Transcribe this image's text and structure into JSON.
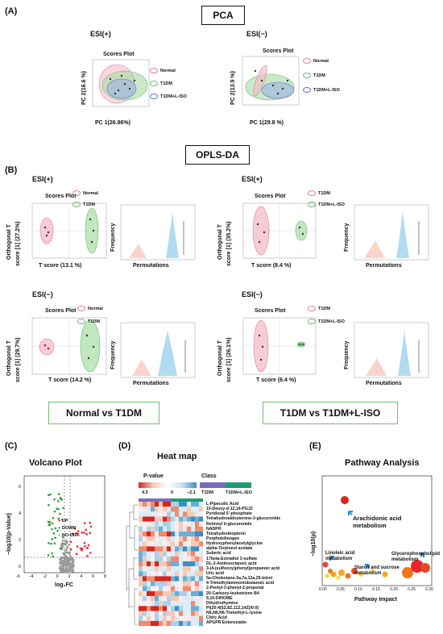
{
  "panels": {
    "a": "(A)",
    "b": "(B)",
    "c": "(C)",
    "d": "(D)",
    "e": "(E)"
  },
  "pca": {
    "title": "PCA",
    "esi_pos": "ESI(+)",
    "esi_neg": "ESI(−)",
    "plot_title": "Scores Plot",
    "left": {
      "xlabel": "PC 1(26.86%)",
      "ylabel": "PC 2(16.6 %)"
    },
    "right": {
      "xlabel": "PC 1(29.8 %)",
      "ylabel": "PC 2(13.9 %)"
    },
    "legend": [
      "Normal",
      "T1DM",
      "T1DM+L-ISO"
    ]
  },
  "oplsda": {
    "title": "OPLS-DA",
    "esi_pos": "ESI(+)",
    "esi_neg": "ESI(−)",
    "scores_title": "Scores Plot",
    "frequency_label": "Frequency",
    "permutations_label": "Permutations",
    "tl": {
      "xlabel": "T score (13.1 %)",
      "ylabel1": "Orthogonal T",
      "ylabel2": "score [1] (27.2%)",
      "legend": [
        "Normal",
        "T1DM"
      ]
    },
    "tr": {
      "xlabel": "T score (8.4 %)",
      "ylabel1": "Orthogonal T",
      "ylabel2": "score [1] (35.2%)",
      "legend": [
        "T1DM",
        "T1DM+L-ISO"
      ]
    },
    "bl": {
      "xlabel": "T score (14.2 %)",
      "ylabel1": "Orthogonal T",
      "ylabel2": "score [1] (29.7%)",
      "legend": [
        "Normal",
        "T1DM"
      ]
    },
    "br": {
      "xlabel": "T score (6.4 %)",
      "ylabel1": "Orthogonal T",
      "ylabel2": "score [1] (26.1%)",
      "legend": [
        "T1DM",
        "T1DM+L-ISO"
      ]
    },
    "comparison_left": "Normal vs T1DM",
    "comparison_right": "T1DM vs T1DM+L-ISO"
  },
  "volcano": {
    "title": "Volcano Plot",
    "xlabel": "log₂FC",
    "ylabel": "−log10(p-Value)",
    "legend": [
      "UP",
      "DOWN",
      "NO-DIFF"
    ],
    "colors": {
      "up": "#e8262b",
      "down": "#2e9e3a",
      "nodiff": "#9a9a9a"
    },
    "xticks": [
      "-6",
      "-4",
      "-2",
      "0",
      "2",
      "4",
      "6",
      "8"
    ],
    "yticks": [
      "0",
      "2",
      "4",
      "6"
    ]
  },
  "heatmap": {
    "title": "Heat map",
    "pvalue_label": "P-value",
    "class_label": "Class",
    "scale_ticks": [
      "4.5",
      "0",
      "−2.1"
    ],
    "class_legend": [
      "T1DM",
      "T1DM+L-ISO"
    ],
    "metabolites": [
      "L-Pipecolic Acid",
      "15-Deoxy-d-12,14-PGJ2",
      "Pyridoxal 5'-phosphate",
      "Tetrahydroaldosterone-3-glucuronide",
      "Retinoyl b-glucuronide",
      "NADPH",
      "Tetrahydrobiopterin",
      "Porphobilinogen",
      "Hydroxyphenylacetylglycine",
      "alpha-Terpineol acetate",
      "Suberic acid",
      "17beta-Estradiol 3-sulfate",
      "DL-2-Aminooctanoic acid",
      "3-(4-(sulfooxy)phenyl)propanoic acid",
      "Uric acid",
      "5a-Cholestane-3a,7a,12a,25-tetrol",
      "4-Trimethylammoniobutanoic acid",
      "2-Pentyl-3-phenyl-2-propenal",
      "20-Carboxy-leukotriene B4",
      "9,10-DiHOME",
      "Dihydrothymine",
      "PI(20:4(5Z,8Z,11Z,14Z)/0:0)",
      "N6,N6,N6-Trimethyl-L-lysine",
      "Citric Acid",
      "APGPR Enterostatin"
    ]
  },
  "pathway": {
    "title": "Pathway Analysis",
    "xlabel": "Pathway Impact",
    "ylabel": "−log10(p)",
    "xticks": [
      "0.00",
      "0.05",
      "0.10",
      "0.15",
      "0.20",
      "0.25",
      "0.30"
    ],
    "labels": {
      "arachidonic": "Arachidonic acid\nmetabolism",
      "linoleic": "Linoleic acid\nmetabolism",
      "starch": "Starch and sucrose\nmetabolism",
      "glycero": "Glycerophospholipid\nmetabolism"
    }
  }
}
